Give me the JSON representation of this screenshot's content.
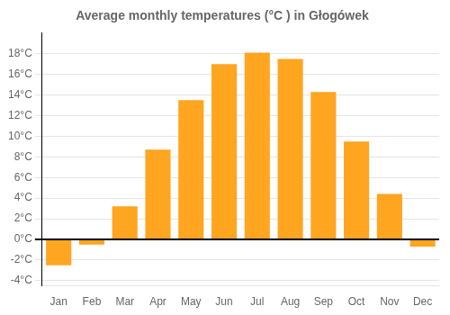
{
  "chart_data": {
    "type": "bar",
    "title": "Average monthly temperatures (°C ) in Głogówek",
    "categories": [
      "Jan",
      "Feb",
      "Mar",
      "Apr",
      "May",
      "Jun",
      "Jul",
      "Aug",
      "Sep",
      "Oct",
      "Nov",
      "Dec"
    ],
    "values": [
      -2.5,
      -0.5,
      3.2,
      8.7,
      13.5,
      17.0,
      18.1,
      17.5,
      14.3,
      9.5,
      4.4,
      -0.7
    ],
    "color": "#FFA520",
    "ylim": [
      -4.5,
      20
    ],
    "yticks": [
      {
        "value": -4,
        "label": "-4°C"
      },
      {
        "value": -2,
        "label": "-2°C"
      },
      {
        "value": 0,
        "label": "0°C"
      },
      {
        "value": 2,
        "label": "2°C"
      },
      {
        "value": 4,
        "label": "4°C"
      },
      {
        "value": 6,
        "label": "6°C"
      },
      {
        "value": 8,
        "label": "8°C"
      },
      {
        "value": 10,
        "label": "10°C"
      },
      {
        "value": 12,
        "label": "12°C"
      },
      {
        "value": 14,
        "label": "14°C"
      },
      {
        "value": 16,
        "label": "16°C"
      },
      {
        "value": 18,
        "label": "18°C"
      }
    ],
    "grid": true
  }
}
